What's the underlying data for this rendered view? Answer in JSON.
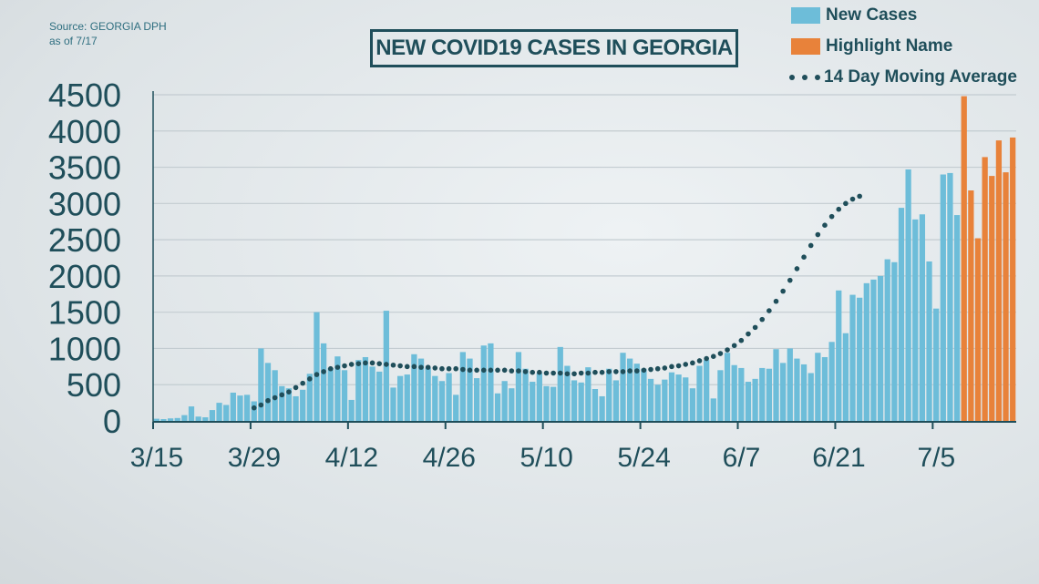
{
  "source": {
    "line1": "Source: GEORGIA DPH",
    "line2": "as of 7/17"
  },
  "title": "NEW COVID19 CASES IN GEORGIA",
  "legend": {
    "new_cases": "New Cases",
    "highlight": "Highlight Name",
    "moving_avg": "14 Day Moving Average"
  },
  "colors": {
    "bar": "#6dbdd9",
    "highlight": "#e8823a",
    "avg": "#1f4e5a",
    "axis": "#1f4e5a",
    "grid": "#c3ccd1"
  },
  "chart_data": {
    "type": "bar",
    "x_tick_labels": [
      "3/15",
      "3/29",
      "4/12",
      "4/26",
      "5/10",
      "5/24",
      "6/7",
      "6/21",
      "7/5"
    ],
    "y_tick_labels": [
      "0",
      "500",
      "1000",
      "1500",
      "2000",
      "2500",
      "3000",
      "3500",
      "4000",
      "4500"
    ],
    "ylim": [
      0,
      4500
    ],
    "start_label": "3/15",
    "series": [
      {
        "name": "New Cases",
        "values": [
          30,
          25,
          35,
          40,
          80,
          200,
          60,
          50,
          150,
          250,
          220,
          390,
          350,
          360,
          270,
          1000,
          800,
          700,
          480,
          450,
          340,
          430,
          650,
          1500,
          1070,
          730,
          890,
          700,
          290,
          840,
          880,
          750,
          680,
          1520,
          460,
          620,
          640,
          920,
          860,
          730,
          620,
          550,
          660,
          360,
          950,
          860,
          590,
          1040,
          1070,
          380,
          550,
          450,
          950,
          720,
          540,
          660,
          480,
          470,
          1020,
          760,
          560,
          530,
          740,
          440,
          340,
          720,
          560,
          940,
          860,
          790,
          720,
          580,
          500,
          570,
          670,
          640,
          600,
          450,
          760,
          840,
          310,
          700,
          940,
          770,
          730,
          540,
          580,
          730,
          720,
          990,
          800,
          1000,
          860,
          780,
          660,
          940,
          880,
          1090,
          1800,
          1210,
          1740,
          1700,
          1900,
          1950,
          2000,
          2230,
          2190,
          2940,
          3470,
          2780,
          2850,
          2200,
          1550,
          3400,
          3420,
          2840
        ]
      },
      {
        "name": "Highlight Name",
        "values": [
          4480,
          3180,
          2520,
          3640,
          3380,
          3870,
          3430,
          3910
        ]
      },
      {
        "name": "14 Day Moving Average",
        "values": [
          180,
          220,
          280,
          320,
          360,
          400,
          460,
          520,
          580,
          640,
          680,
          720,
          740,
          760,
          780,
          790,
          800,
          800,
          790,
          780,
          770,
          760,
          750,
          750,
          740,
          740,
          730,
          720,
          720,
          720,
          710,
          700,
          700,
          700,
          700,
          700,
          700,
          690,
          690,
          680,
          670,
          670,
          660,
          660,
          660,
          650,
          650,
          660,
          660,
          670,
          670,
          680,
          680,
          680,
          690,
          690,
          700,
          710,
          720,
          730,
          750,
          760,
          780,
          800,
          830,
          860,
          890,
          930,
          980,
          1040,
          1110,
          1200,
          1290,
          1400,
          1520,
          1650,
          1790,
          1940,
          2100,
          2260,
          2420,
          2570,
          2700,
          2820,
          2920,
          3000,
          3060,
          3100
        ]
      }
    ]
  }
}
